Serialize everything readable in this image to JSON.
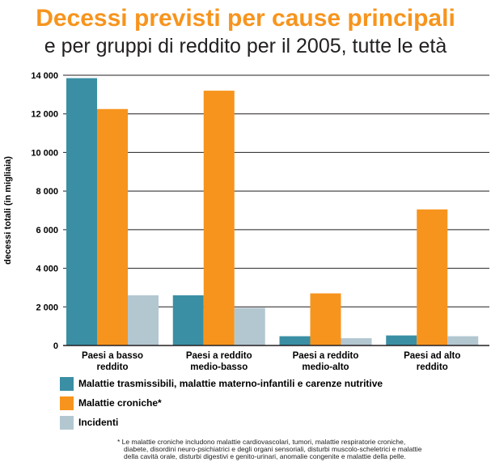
{
  "title": "Decessi previsti per cause principali",
  "subtitle": "e per gruppi di reddito per il 2005, tutte le età",
  "chart_data": {
    "type": "bar",
    "title": "Decessi previsti per cause principali",
    "subtitle": "e per gruppi di reddito per il 2005, tutte le età",
    "ylabel": "decessi totali (in migliaia)",
    "xlabel": "",
    "ylim": [
      0,
      14000
    ],
    "yticks": [
      0,
      2000,
      4000,
      6000,
      8000,
      10000,
      12000,
      14000
    ],
    "ytick_labels": [
      "0",
      "2 000",
      "4 000",
      "6 000",
      "8 000",
      "10 000",
      "12 000",
      "14 000"
    ],
    "grid": "horizontal",
    "legend_position": "bottom",
    "categories": [
      [
        "Paesi a basso",
        "reddito"
      ],
      [
        "Paesi a reddito",
        "medio-basso"
      ],
      [
        "Paesi a reddito",
        "medio-alto"
      ],
      [
        "Paesi ad alto",
        "reddito"
      ]
    ],
    "series": [
      {
        "name": "Malattie trasmissibili, malattie materno-infantili e carenze nutritive",
        "color": "#3a8fa4",
        "values": [
          13850,
          2600,
          480,
          520
        ]
      },
      {
        "name": "Malattie croniche*",
        "color": "#f7941d",
        "values": [
          12250,
          13200,
          2700,
          7050
        ]
      },
      {
        "name": "Incidenti",
        "color": "#b3c7d1",
        "values": [
          2600,
          1950,
          380,
          480
        ]
      }
    ]
  },
  "footnote": [
    "* Le malattie croniche includono malattie cardiovascolari, tumori, malattie respiratorie croniche,",
    "diabete, disordini neuro-psichiatrici e degli organi sensoriali, disturbi muscolo-scheletrici e malattie",
    "della cavità orale, disturbi digestivi e genito-urinari, anomalie congenite e malattie della pelle."
  ]
}
